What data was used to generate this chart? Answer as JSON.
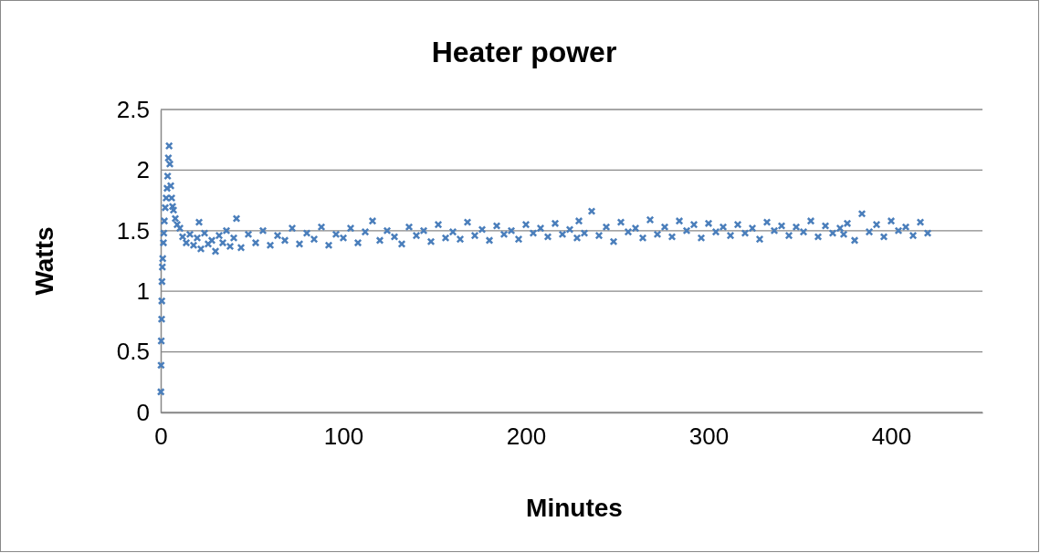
{
  "chart_data": {
    "type": "scatter",
    "title": "Heater power",
    "xlabel": "Minutes",
    "ylabel": "Watts",
    "xlim": [
      0,
      450
    ],
    "ylim": [
      0,
      2.5
    ],
    "xticks": [
      0,
      100,
      200,
      300,
      400
    ],
    "yticks": [
      0,
      0.5,
      1,
      1.5,
      2,
      2.5
    ],
    "grid": "y",
    "marker": "cross",
    "series": [
      {
        "color": "#4a7ebb",
        "x": [
          0.1,
          0.2,
          0.3,
          0.5,
          0.6,
          0.7,
          0.9,
          1.1,
          1.5,
          1.7,
          2,
          2.5,
          3,
          3.5,
          3.8,
          4.2,
          4.6,
          5,
          5.5,
          6,
          6.5,
          7,
          8,
          9,
          10.5,
          12,
          14,
          16,
          18,
          20,
          21,
          22,
          24,
          26,
          28,
          30,
          32,
          34,
          36,
          38,
          40,
          41.5,
          44,
          48,
          52,
          56,
          60,
          64,
          68,
          72,
          76,
          80,
          84,
          88,
          92,
          96,
          100,
          104,
          108,
          112,
          116,
          120,
          124,
          128,
          132,
          136,
          140,
          144,
          148,
          152,
          156,
          160,
          164,
          168,
          172,
          176,
          180,
          184,
          188,
          192,
          196,
          200,
          204,
          208,
          212,
          216,
          220,
          224,
          228,
          229,
          232,
          236,
          240,
          244,
          248,
          252,
          256,
          260,
          264,
          268,
          272,
          276,
          280,
          284,
          288,
          292,
          296,
          300,
          304,
          308,
          312,
          316,
          320,
          324,
          328,
          332,
          336,
          340,
          344,
          348,
          352,
          356,
          360,
          364,
          368,
          372,
          374,
          376,
          380,
          384,
          388,
          392,
          396,
          400,
          404,
          408,
          412,
          416,
          420
        ],
        "values": [
          0.17,
          0.39,
          0.59,
          0.77,
          0.92,
          1.08,
          1.2,
          1.27,
          1.4,
          1.48,
          1.58,
          1.69,
          1.77,
          1.85,
          1.95,
          2.1,
          2.2,
          2.05,
          1.87,
          1.77,
          1.7,
          1.67,
          1.6,
          1.55,
          1.52,
          1.45,
          1.4,
          1.47,
          1.38,
          1.44,
          1.57,
          1.35,
          1.48,
          1.39,
          1.42,
          1.33,
          1.46,
          1.4,
          1.5,
          1.37,
          1.44,
          1.6,
          1.36,
          1.47,
          1.4,
          1.5,
          1.38,
          1.46,
          1.42,
          1.52,
          1.39,
          1.48,
          1.43,
          1.53,
          1.38,
          1.47,
          1.44,
          1.52,
          1.4,
          1.49,
          1.58,
          1.42,
          1.5,
          1.45,
          1.39,
          1.53,
          1.46,
          1.5,
          1.41,
          1.55,
          1.44,
          1.49,
          1.43,
          1.57,
          1.46,
          1.51,
          1.42,
          1.54,
          1.47,
          1.5,
          1.43,
          1.55,
          1.48,
          1.52,
          1.45,
          1.56,
          1.47,
          1.51,
          1.44,
          1.58,
          1.48,
          1.66,
          1.46,
          1.53,
          1.41,
          1.57,
          1.49,
          1.52,
          1.44,
          1.59,
          1.47,
          1.53,
          1.45,
          1.58,
          1.5,
          1.55,
          1.44,
          1.56,
          1.49,
          1.53,
          1.46,
          1.55,
          1.48,
          1.52,
          1.43,
          1.57,
          1.5,
          1.54,
          1.46,
          1.53,
          1.49,
          1.58,
          1.45,
          1.54,
          1.48,
          1.52,
          1.47,
          1.56,
          1.42,
          1.64,
          1.49,
          1.55,
          1.45,
          1.58,
          1.5,
          1.53,
          1.46,
          1.57,
          1.48
        ]
      }
    ]
  }
}
